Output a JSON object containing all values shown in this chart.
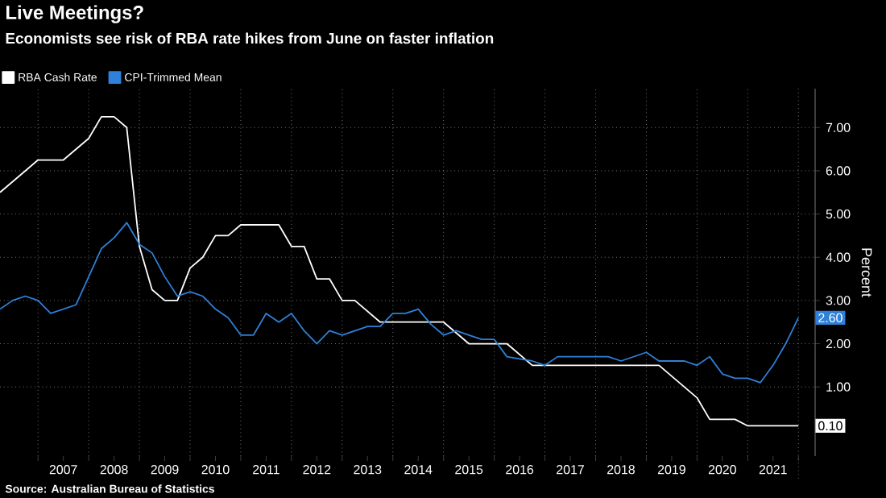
{
  "chart_data": {
    "type": "line",
    "title": "Live Meetings?",
    "subtitle": "Economists see risk of RBA rate hikes from June on faster inflation",
    "ylabel": "Percent",
    "annotations": [
      "Source: Australian Bureau of Statistics"
    ],
    "xlim": [
      "2006-04",
      "2022-05"
    ],
    "ylim": [
      -0.6,
      7.9
    ],
    "xticks": [
      {
        "value": "2007-01",
        "label": null
      },
      {
        "value": "2008-01",
        "label": null
      },
      {
        "value": "2009-01",
        "label": null
      },
      {
        "value": "2010-01",
        "label": null
      },
      {
        "value": "2011-01",
        "label": null
      },
      {
        "value": "2012-01",
        "label": null
      },
      {
        "value": "2013-01",
        "label": null
      },
      {
        "value": "2014-01",
        "label": null
      },
      {
        "value": "2015-01",
        "label": null
      },
      {
        "value": "2016-01",
        "label": null
      },
      {
        "value": "2017-01",
        "label": null
      },
      {
        "value": "2018-01",
        "label": null
      },
      {
        "value": "2019-01",
        "label": null
      },
      {
        "value": "2020-01",
        "label": null
      },
      {
        "value": "2021-01",
        "label": null
      },
      {
        "value": "2022-01",
        "label": null
      },
      {
        "value": "2007-07",
        "label": "2007"
      },
      {
        "value": "2008-07",
        "label": "2008"
      },
      {
        "value": "2009-07",
        "label": "2009"
      },
      {
        "value": "2010-07",
        "label": "2010"
      },
      {
        "value": "2011-07",
        "label": "2011"
      },
      {
        "value": "2012-07",
        "label": "2012"
      },
      {
        "value": "2013-07",
        "label": "2013"
      },
      {
        "value": "2014-07",
        "label": "2014"
      },
      {
        "value": "2015-07",
        "label": "2015"
      },
      {
        "value": "2016-07",
        "label": "2016"
      },
      {
        "value": "2017-07",
        "label": "2017"
      },
      {
        "value": "2018-07",
        "label": "2018"
      },
      {
        "value": "2019-07",
        "label": "2019"
      },
      {
        "value": "2020-07",
        "label": "2020"
      },
      {
        "value": "2021-07",
        "label": "2021"
      }
    ],
    "yticks": [
      {
        "value": 1,
        "label": "1.00"
      },
      {
        "value": 2,
        "label": "2.00"
      },
      {
        "value": 3,
        "label": "3.00"
      },
      {
        "value": 4,
        "label": "4.00"
      },
      {
        "value": 5,
        "label": "5.00"
      },
      {
        "value": 6,
        "label": "6.00"
      },
      {
        "value": 7,
        "label": "7.00"
      }
    ],
    "grid": true,
    "legend": "top left",
    "series": [
      {
        "name": "RBA Cash Rate",
        "color": "#ffffff",
        "x": [
          "2006-04",
          "2006-10",
          "2007-01",
          "2007-07",
          "2008-01",
          "2008-04",
          "2008-07",
          "2008-10",
          "2009-01",
          "2009-04",
          "2009-07",
          "2009-10",
          "2010-01",
          "2010-04",
          "2010-07",
          "2010-10",
          "2011-01",
          "2011-10",
          "2012-01",
          "2012-04",
          "2012-07",
          "2012-10",
          "2013-01",
          "2013-04",
          "2013-10",
          "2015-01",
          "2015-07",
          "2016-04",
          "2016-10",
          "2019-04",
          "2020-01",
          "2020-04",
          "2020-10",
          "2021-01",
          "2022-01"
        ],
        "values": [
          5.5,
          6.0,
          6.25,
          6.25,
          6.75,
          7.25,
          7.25,
          7.0,
          4.25,
          3.25,
          3.0,
          3.0,
          3.75,
          4.0,
          4.5,
          4.5,
          4.75,
          4.75,
          4.25,
          4.25,
          3.5,
          3.5,
          3.0,
          3.0,
          2.5,
          2.5,
          2.0,
          2.0,
          1.5,
          1.5,
          0.75,
          0.25,
          0.25,
          0.1,
          0.1
        ],
        "value_labels": [
          null,
          null,
          null,
          null,
          null,
          null,
          null,
          null,
          null,
          null,
          null,
          null,
          null,
          null,
          null,
          null,
          null,
          null,
          null,
          null,
          null,
          null,
          null,
          null,
          null,
          null,
          null,
          null,
          null,
          null,
          null,
          null,
          null,
          null,
          "0.10"
        ]
      },
      {
        "name": "CPI-Trimmed Mean",
        "color": "#2f80d8",
        "x": [
          "2006-04",
          "2006-07",
          "2006-10",
          "2007-01",
          "2007-04",
          "2007-10",
          "2008-01",
          "2008-04",
          "2008-07",
          "2008-10",
          "2009-01",
          "2009-04",
          "2009-07",
          "2009-10",
          "2010-01",
          "2010-04",
          "2010-07",
          "2010-10",
          "2011-01",
          "2011-04",
          "2011-07",
          "2011-10",
          "2012-01",
          "2012-04",
          "2012-07",
          "2012-10",
          "2013-01",
          "2013-04",
          "2013-07",
          "2013-10",
          "2014-01",
          "2014-04",
          "2014-07",
          "2014-10",
          "2015-01",
          "2015-04",
          "2015-07",
          "2015-10",
          "2016-01",
          "2016-04",
          "2016-07",
          "2016-10",
          "2017-01",
          "2017-04",
          "2018-04",
          "2018-07",
          "2018-10",
          "2019-01",
          "2019-04",
          "2019-10",
          "2020-01",
          "2020-04",
          "2020-07",
          "2020-10",
          "2021-01",
          "2021-04",
          "2021-07",
          "2021-10",
          "2022-01"
        ],
        "values": [
          2.8,
          3.0,
          3.1,
          3.0,
          2.7,
          2.9,
          3.55,
          4.2,
          4.45,
          4.8,
          4.3,
          4.1,
          3.55,
          3.1,
          3.2,
          3.1,
          2.8,
          2.6,
          2.2,
          2.2,
          2.7,
          2.5,
          2.7,
          2.3,
          2.0,
          2.3,
          2.2,
          2.3,
          2.4,
          2.4,
          2.7,
          2.7,
          2.8,
          2.45,
          2.2,
          2.3,
          2.2,
          2.1,
          2.1,
          1.7,
          1.65,
          1.6,
          1.5,
          1.7,
          1.7,
          1.6,
          1.7,
          1.8,
          1.6,
          1.6,
          1.5,
          1.7,
          1.3,
          1.2,
          1.2,
          1.1,
          1.5,
          2.0,
          2.6
        ],
        "value_labels": [
          null,
          null,
          null,
          null,
          null,
          null,
          null,
          null,
          null,
          null,
          null,
          null,
          null,
          null,
          null,
          null,
          null,
          null,
          null,
          null,
          null,
          null,
          null,
          null,
          null,
          null,
          null,
          null,
          null,
          null,
          null,
          null,
          null,
          null,
          null,
          null,
          null,
          null,
          null,
          null,
          null,
          null,
          null,
          null,
          null,
          null,
          null,
          null,
          null,
          null,
          null,
          null,
          null,
          null,
          null,
          null,
          null,
          null,
          "2.60"
        ]
      }
    ]
  }
}
